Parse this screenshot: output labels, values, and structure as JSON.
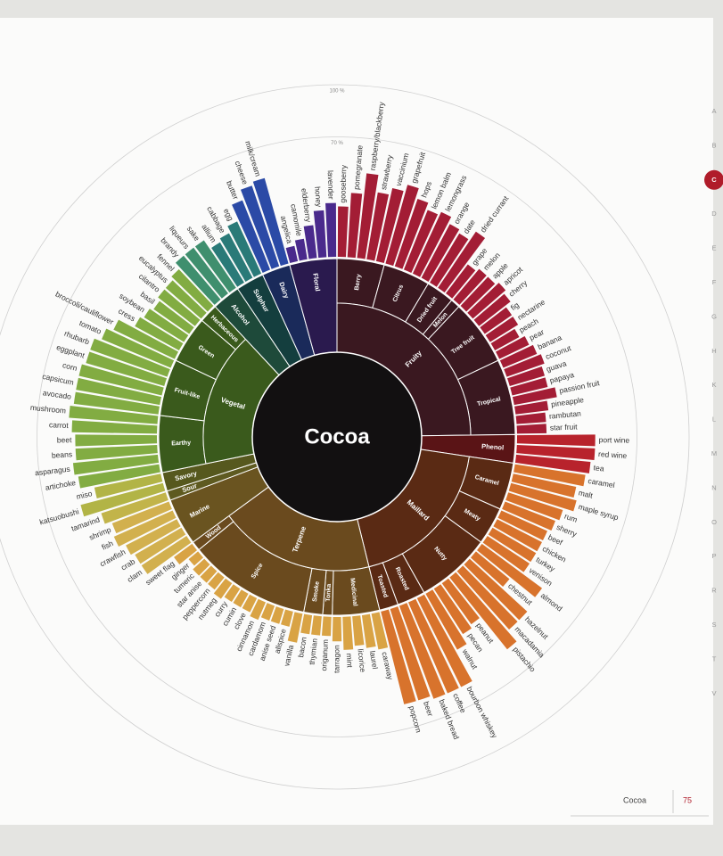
{
  "chart_data": {
    "type": "radial_bar",
    "center_label": "Cocoa",
    "ylim": [
      0,
      100
    ],
    "yticks": [
      {
        "value": 70,
        "label": "70 %"
      },
      {
        "value": 100,
        "label": "100 %"
      }
    ],
    "groups": [
      {
        "name": "Fruity",
        "color": "#a31d35",
        "inner_color": "#3a1820",
        "subgroups": [
          {
            "name": "Berry",
            "items": [
              {
                "label": "gooseberry",
                "value": 30
              },
              {
                "label": "pomegranate",
                "value": 38
              },
              {
                "label": "raspberry/blackberry",
                "value": 50
              },
              {
                "label": "strawberry",
                "value": 40
              },
              {
                "label": "vaccinium",
                "value": 44
              }
            ]
          },
          {
            "name": "Citrus",
            "items": [
              {
                "label": "grapefruit",
                "value": 48
              },
              {
                "label": "hops",
                "value": 42
              },
              {
                "label": "lemon balm",
                "value": 38
              },
              {
                "label": "lemongrass",
                "value": 40
              },
              {
                "label": "orange",
                "value": 36
              }
            ]
          },
          {
            "name": "Dried fruit",
            "items": [
              {
                "label": "date",
                "value": 34
              },
              {
                "label": "dried currant",
                "value": 40
              },
              {
                "label": "grape",
                "value": 22
              }
            ]
          },
          {
            "name": "Melon",
            "items": [
              {
                "label": "melon",
                "value": 24
              }
            ]
          },
          {
            "name": "Tree fruit",
            "items": [
              {
                "label": "apple",
                "value": 24
              },
              {
                "label": "apricot",
                "value": 26
              },
              {
                "label": "cherry",
                "value": 24
              },
              {
                "label": "fig",
                "value": 20
              },
              {
                "label": "nectarine",
                "value": 20
              },
              {
                "label": "peach",
                "value": 17
              },
              {
                "label": "pear",
                "value": 20
              }
            ]
          },
          {
            "name": "Tropical",
            "items": [
              {
                "label": "banana",
                "value": 22
              },
              {
                "label": "coconut",
                "value": 24
              },
              {
                "label": "guava",
                "value": 22
              },
              {
                "label": "papaya",
                "value": 22
              },
              {
                "label": "passion fruit",
                "value": 26
              },
              {
                "label": "pineapple",
                "value": 20
              },
              {
                "label": "rambutan",
                "value": 18
              },
              {
                "label": "star fruit",
                "value": 18
              }
            ]
          }
        ]
      },
      {
        "name": "Phenol",
        "color": "#b8232c",
        "inner_color": "#5a1416",
        "items": [
          {
            "label": "port wine",
            "value": 46
          },
          {
            "label": "red wine",
            "value": 46
          },
          {
            "label": "tea",
            "value": 44
          }
        ]
      },
      {
        "name": "Maillard",
        "color": "#d8732c",
        "inner_color": "#5a2a14",
        "subgroups": [
          {
            "name": "Caramel",
            "items": [
              {
                "label": "caramel",
                "value": 42
              },
              {
                "label": "malt",
                "value": 38
              },
              {
                "label": "maple syrup",
                "value": 40
              },
              {
                "label": "rum",
                "value": 34
              },
              {
                "label": "sherry",
                "value": 32
              }
            ]
          },
          {
            "name": "Meaty",
            "items": [
              {
                "label": "beef",
                "value": 30
              },
              {
                "label": "chicken",
                "value": 30
              },
              {
                "label": "turkey",
                "value": 30
              },
              {
                "label": "venison",
                "value": 30
              }
            ]
          },
          {
            "name": "Nutty",
            "items": [
              {
                "label": "almond",
                "value": 44
              },
              {
                "label": "chestnut",
                "value": 26
              },
              {
                "label": "hazelnut",
                "value": 46
              },
              {
                "label": "macadamia",
                "value": 46
              },
              {
                "label": "pistachio",
                "value": 54
              },
              {
                "label": "peanut",
                "value": 30
              },
              {
                "label": "pecan",
                "value": 32
              },
              {
                "label": "walnut",
                "value": 38
              }
            ]
          },
          {
            "name": "Roasted",
            "items": [
              {
                "label": "bourbon whiskey",
                "value": 58
              },
              {
                "label": "coffee",
                "value": 58
              },
              {
                "label": "baked bread",
                "value": 58
              }
            ]
          },
          {
            "name": "Toasted",
            "items": [
              {
                "label": "beer",
                "value": 56
              },
              {
                "label": "popcorn",
                "value": 56
              }
            ]
          }
        ]
      },
      {
        "name": "Terpene",
        "color": "#d9a344",
        "inner_color": "#6a4a1e",
        "subgroups": [
          {
            "name": "Medicinal",
            "items": [
              {
                "label": "caraway",
                "value": 22
              },
              {
                "label": "laurel",
                "value": 20
              },
              {
                "label": "licorice",
                "value": 18
              },
              {
                "label": "mint",
                "value": 20
              },
              {
                "label": "tarragon",
                "value": 15
              }
            ]
          },
          {
            "name": "Tonka",
            "items": [
              {
                "label": "origanum",
                "value": 12
              }
            ]
          },
          {
            "name": "Smoke",
            "items": [
              {
                "label": "thymian",
                "value": 12
              },
              {
                "label": "bacon",
                "value": 12
              }
            ]
          },
          {
            "name": "Spice",
            "items": [
              {
                "label": "vanilla",
                "value": 18
              },
              {
                "label": "allspice",
                "value": 10
              },
              {
                "label": "anise seed",
                "value": 10
              },
              {
                "label": "cardamom",
                "value": 10
              },
              {
                "label": "cinnamon",
                "value": 12
              },
              {
                "label": "clove",
                "value": 10
              },
              {
                "label": "cumin",
                "value": 10
              },
              {
                "label": "curry",
                "value": 10
              },
              {
                "label": "nutmeg",
                "value": 12
              },
              {
                "label": "peppercorn",
                "value": 10
              },
              {
                "label": "star anise",
                "value": 10
              },
              {
                "label": "tumeric",
                "value": 10
              },
              {
                "label": "ginger",
                "value": 8
              }
            ]
          },
          {
            "name": "Wood",
            "items": [
              {
                "label": "sweet flag",
                "value": 14
              }
            ]
          }
        ]
      },
      {
        "name": "Marine",
        "color": "#d2b04e",
        "inner_color": "#6a5420",
        "items": [
          {
            "label": "clam",
            "value": 32
          },
          {
            "label": "crab",
            "value": 32
          },
          {
            "label": "crawfish",
            "value": 34
          },
          {
            "label": "fish",
            "value": 38
          },
          {
            "label": "shrimp",
            "value": 36
          }
        ]
      },
      {
        "name": "Sour",
        "color": "#c2b44a",
        "inner_color": "#5e5a20",
        "items": [
          {
            "label": "tamarind",
            "value": 40
          }
        ]
      },
      {
        "name": "Savory",
        "color": "#b2b446",
        "inner_color": "#56581e",
        "items": [
          {
            "label": "katsuobushi",
            "value": 50
          },
          {
            "label": "miso",
            "value": 40
          }
        ]
      },
      {
        "name": "Vegetal",
        "color": "#82ac42",
        "inner_color": "#3a5a1c",
        "subgroups": [
          {
            "name": "Earthy",
            "items": [
              {
                "label": "artichoke",
                "value": 48
              },
              {
                "label": "asparagus",
                "value": 50
              },
              {
                "label": "beans",
                "value": 48
              },
              {
                "label": "beet",
                "value": 48
              },
              {
                "label": "carrot",
                "value": 50
              },
              {
                "label": "mushroom",
                "value": 52
              }
            ]
          },
          {
            "name": "Fruit-like",
            "items": [
              {
                "label": "avocado",
                "value": 50
              },
              {
                "label": "capsicum",
                "value": 50
              },
              {
                "label": "corn",
                "value": 50
              },
              {
                "label": "eggplant",
                "value": 48
              },
              {
                "label": "rhubarb",
                "value": 48
              },
              {
                "label": "tomato",
                "value": 44
              }
            ]
          },
          {
            "name": "Green",
            "items": [
              {
                "label": "broccoli/cauliflower",
                "value": 40
              },
              {
                "label": "cress",
                "value": 30
              },
              {
                "label": "soybean",
                "value": 28
              },
              {
                "label": "basil",
                "value": 26
              },
              {
                "label": "cilantro",
                "value": 28
              }
            ]
          },
          {
            "name": "Herbaceous",
            "items": [
              {
                "label": "eucalyptus",
                "value": 28
              },
              {
                "label": "fennel",
                "value": 30
              }
            ]
          }
        ]
      },
      {
        "name": "Alcohol",
        "color": "#3f8f6e",
        "inner_color": "#1e4a3a",
        "items": [
          {
            "label": "brandy",
            "value": 34
          },
          {
            "label": "liqueurs",
            "value": 34
          },
          {
            "label": "sake",
            "value": 34
          }
        ]
      },
      {
        "name": "Sulphur",
        "color": "#2a7a78",
        "inner_color": "#143e3e",
        "items": [
          {
            "label": "allium",
            "value": 28
          },
          {
            "label": "cabbage",
            "value": 30
          },
          {
            "label": "egg",
            "value": 34
          }
        ]
      },
      {
        "name": "Dairy",
        "color": "#2b4aa6",
        "inner_color": "#1a2a5a",
        "items": [
          {
            "label": "butter",
            "value": 44
          },
          {
            "label": "cheese",
            "value": 50
          },
          {
            "label": "milk/cream",
            "value": 52
          }
        ]
      },
      {
        "name": "Floral",
        "color": "#4a2a8c",
        "inner_color": "#2a1a4e",
        "items": [
          {
            "label": "angelica",
            "value": 10
          },
          {
            "label": "camomile",
            "value": 13
          },
          {
            "label": "elderberry",
            "value": 20
          },
          {
            "label": "honey",
            "value": 28
          },
          {
            "label": "lavender",
            "value": 32
          }
        ]
      }
    ]
  },
  "index": {
    "letters": [
      "A",
      "B",
      "C",
      "D",
      "E",
      "F",
      "G",
      "H",
      "K",
      "L",
      "M",
      "N",
      "O",
      "P",
      "R",
      "S",
      "T",
      "V"
    ],
    "active": "C"
  },
  "footer": {
    "title": "Cocoa",
    "page": 75
  }
}
